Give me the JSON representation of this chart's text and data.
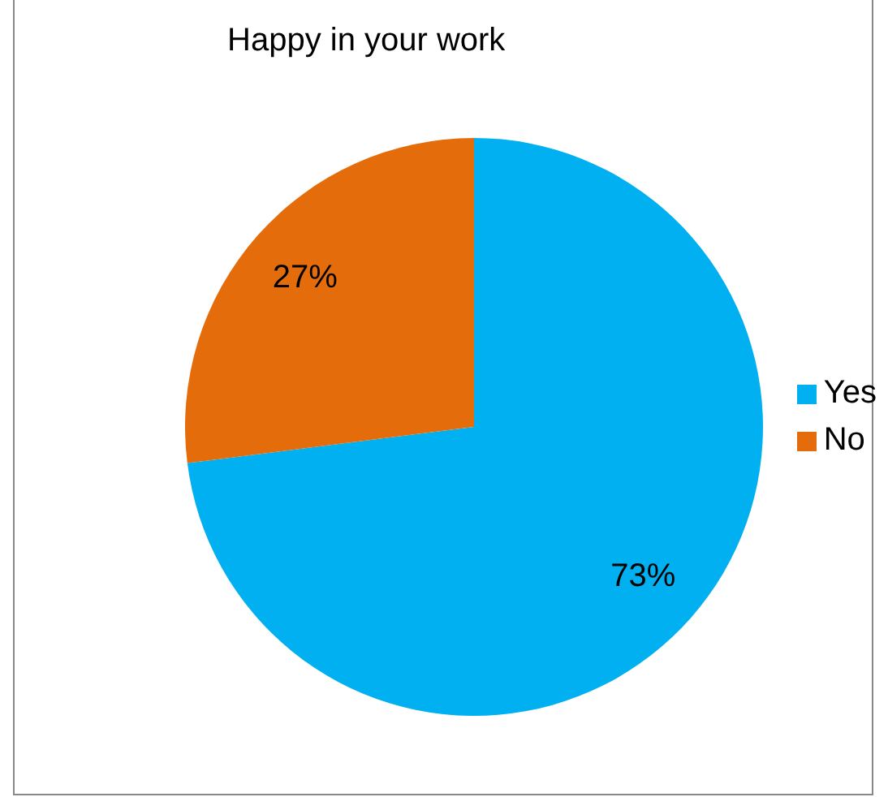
{
  "chart_data": {
    "type": "pie",
    "title": "Happy in your work",
    "categories": [
      "Yes",
      "No"
    ],
    "values": [
      73,
      27
    ],
    "colors": [
      "#00b0f0",
      "#e46c0a"
    ],
    "value_labels": [
      "73%",
      "27%"
    ],
    "legend": "right"
  }
}
